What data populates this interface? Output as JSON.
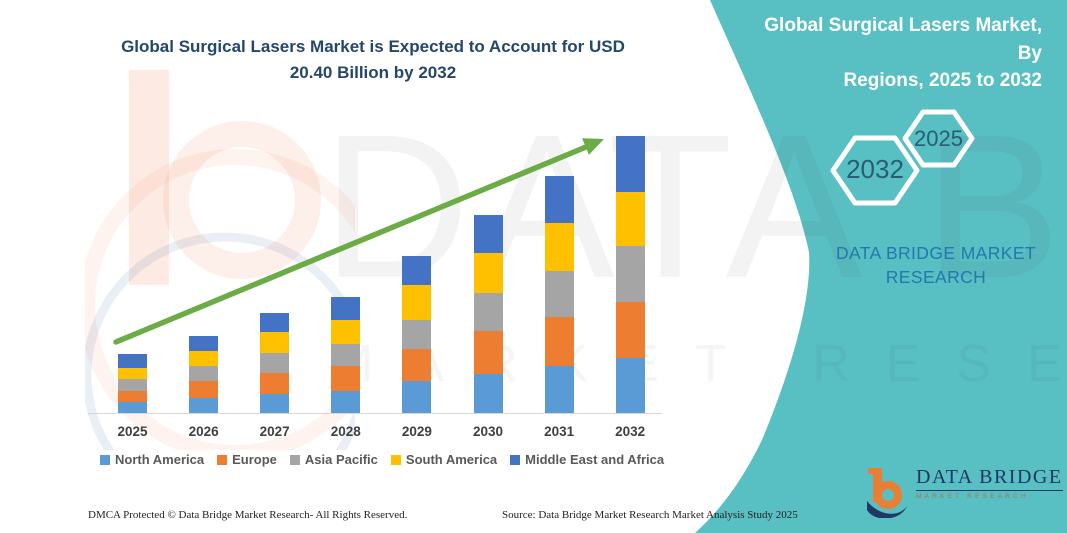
{
  "colors": {
    "panel_teal": "#58BFC3",
    "title_navy": "#24476B",
    "arrow_green": "#6CAC47",
    "axis_gray": "#D8D8D8",
    "year_label_gray": "#404040",
    "legend_label_gray": "#595959",
    "hex_label_blue": "#275D77",
    "panel_brand_blue": "#2478AE",
    "logo_navy": "#1F3864",
    "logo_orange": "#E87F35"
  },
  "chart_data": {
    "type": "bar",
    "stacked": true,
    "title": "Global Surgical Lasers Market is Expected to Account for USD 20.40 Billion by 2032",
    "title_lines": [
      "Global Surgical Lasers Market is Expected to Account for USD",
      "20.40 Billion by 2032"
    ],
    "unit": "USD Billion",
    "categories": [
      "2025",
      "2026",
      "2027",
      "2028",
      "2029",
      "2030",
      "2031",
      "2032"
    ],
    "series": [
      {
        "name": "North America",
        "color": "#5B9BD5",
        "values": [
          0.9,
          1.2,
          1.5,
          1.7,
          2.4,
          2.9,
          3.5,
          4.1
        ]
      },
      {
        "name": "Europe",
        "color": "#ED7D31",
        "values": [
          0.8,
          1.2,
          1.5,
          1.8,
          2.4,
          3.2,
          3.6,
          4.1
        ]
      },
      {
        "name": "Asia Pacific",
        "color": "#A5A5A5",
        "values": [
          0.9,
          1.1,
          1.5,
          1.6,
          2.1,
          2.8,
          3.4,
          4.1
        ]
      },
      {
        "name": "South America",
        "color": "#FFC000",
        "values": [
          0.8,
          1.1,
          1.5,
          1.8,
          2.6,
          2.9,
          3.5,
          4.0
        ]
      },
      {
        "name": "Middle East and Africa",
        "color": "#4472C4",
        "values": [
          1.0,
          1.1,
          1.4,
          1.7,
          2.1,
          2.8,
          3.5,
          4.1
        ]
      }
    ],
    "totals": [
      4.4,
      5.7,
      7.4,
      8.6,
      11.6,
      14.6,
      17.5,
      20.4
    ],
    "ylim": [
      0,
      20.4
    ],
    "xlabel": "",
    "ylabel": "",
    "gridlines": false,
    "y_axis_visible": false,
    "legend_position": "bottom",
    "trend_arrow": true
  },
  "panel": {
    "title": "Global Surgical Lasers Market, By Regions, 2025 to 2032",
    "title_lines": [
      "Global Surgical Lasers Market, By",
      "Regions, 2025 to 2032"
    ],
    "hexagons": [
      "2032",
      "2025"
    ],
    "brand_lines": [
      "DATA BRIDGE MARKET",
      "RESEARCH"
    ]
  },
  "watermark": {
    "line1": "DATA BRIDGE",
    "line2": "MARKET RESEARCH"
  },
  "logo": {
    "title": "DATA BRIDGE",
    "subtitle": "MARKET RESEARCH"
  },
  "footer": {
    "dmca": "DMCA Protected © Data Bridge Market Research-  All Rights Reserved.",
    "source": "Source: Data Bridge Market Research  Market Analysis Study 2025"
  }
}
